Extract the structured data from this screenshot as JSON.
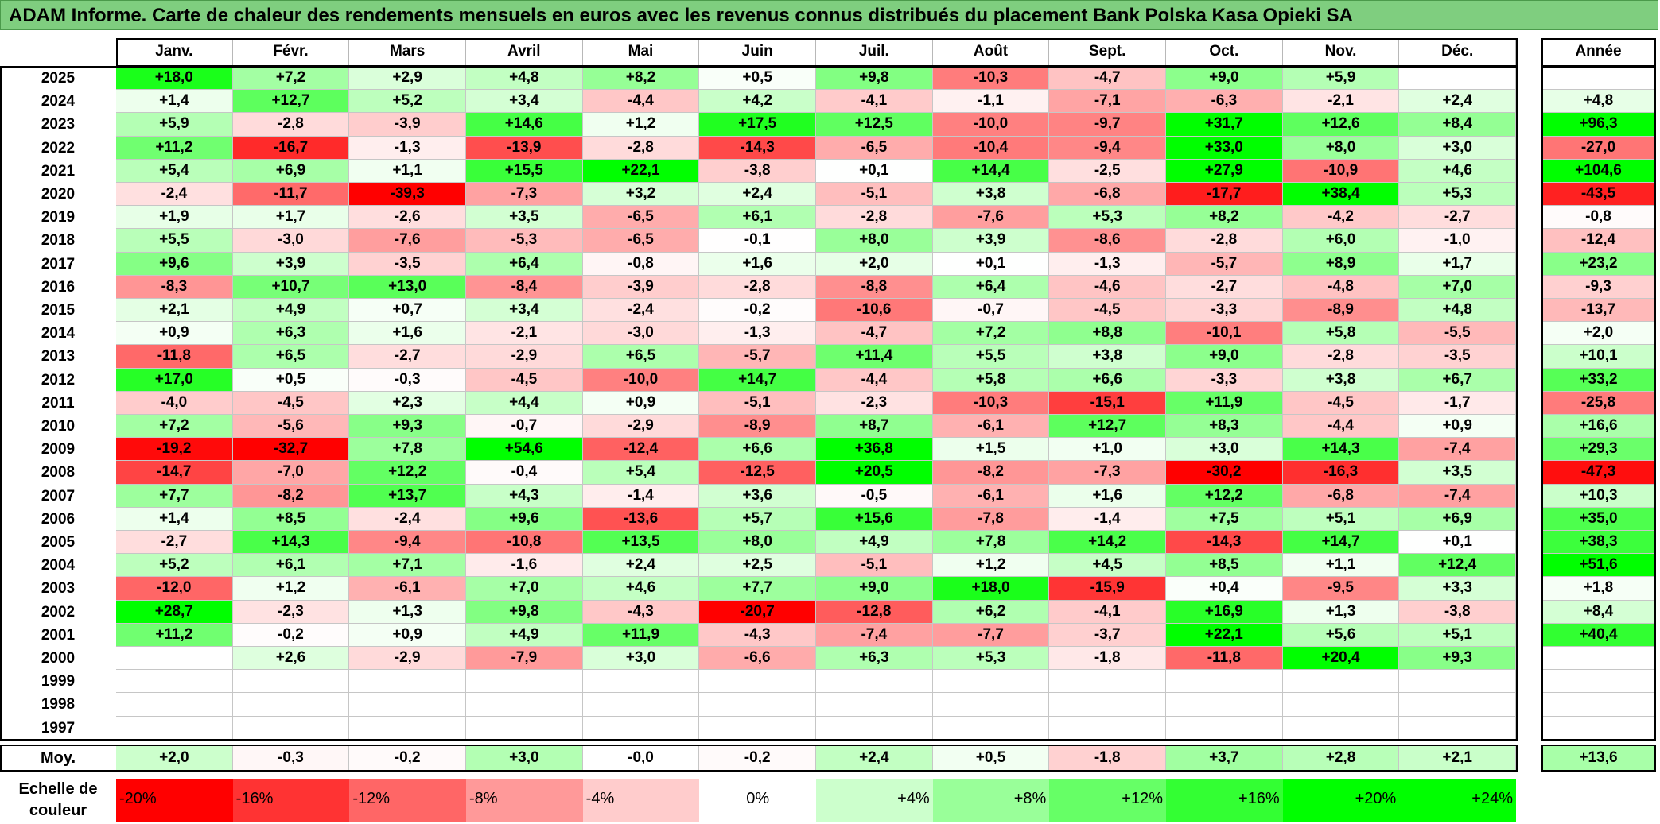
{
  "title": "ADAM Informe. Carte de chaleur des rendements mensuels en euros avec les revenus connus distribués du placement Bank Polska Kasa Opieki SA",
  "chart_data": {
    "type": "heatmap",
    "title": "ADAM Informe. Carte de chaleur des rendements mensuels en euros avec les revenus connus distribués du placement Bank Polska Kasa Opieki SA",
    "months": [
      "Janv.",
      "Févr.",
      "Mars",
      "Avril",
      "Mai",
      "Juin",
      "Juil.",
      "Août",
      "Sept.",
      "Oct.",
      "Nov.",
      "Déc."
    ],
    "year_header": "Année",
    "rows": [
      {
        "year": "2025",
        "values": [
          "+18,0",
          "+7,2",
          "+2,9",
          "+4,8",
          "+8,2",
          "+0,5",
          "+9,8",
          "-10,3",
          "-4,7",
          "+9,0",
          "+5,9",
          ""
        ],
        "annual": ""
      },
      {
        "year": "2024",
        "values": [
          "+1,4",
          "+12,7",
          "+5,2",
          "+3,4",
          "-4,4",
          "+4,2",
          "-4,1",
          "-1,1",
          "-7,1",
          "-6,3",
          "-2,1",
          "+2,4"
        ],
        "annual": "+4,8"
      },
      {
        "year": "2023",
        "values": [
          "+5,9",
          "-2,8",
          "-3,9",
          "+14,6",
          "+1,2",
          "+17,5",
          "+12,5",
          "-10,0",
          "-9,7",
          "+31,7",
          "+12,6",
          "+8,4"
        ],
        "annual": "+96,3"
      },
      {
        "year": "2022",
        "values": [
          "+11,2",
          "-16,7",
          "-1,3",
          "-13,9",
          "-2,8",
          "-14,3",
          "-6,5",
          "-10,4",
          "-9,4",
          "+33,0",
          "+8,0",
          "+3,0"
        ],
        "annual": "-27,0"
      },
      {
        "year": "2021",
        "values": [
          "+5,4",
          "+6,9",
          "+1,1",
          "+15,5",
          "+22,1",
          "-3,8",
          "+0,1",
          "+14,4",
          "-2,5",
          "+27,9",
          "-10,9",
          "+4,6"
        ],
        "annual": "+104,6"
      },
      {
        "year": "2020",
        "values": [
          "-2,4",
          "-11,7",
          "-39,3",
          "-7,3",
          "+3,2",
          "+2,4",
          "-5,1",
          "+3,8",
          "-6,8",
          "-17,7",
          "+38,4",
          "+5,3"
        ],
        "annual": "-43,5"
      },
      {
        "year": "2019",
        "values": [
          "+1,9",
          "+1,7",
          "-2,6",
          "+3,5",
          "-6,5",
          "+6,1",
          "-2,8",
          "-7,6",
          "+5,3",
          "+8,2",
          "-4,2",
          "-2,7"
        ],
        "annual": "-0,8"
      },
      {
        "year": "2018",
        "values": [
          "+5,5",
          "-3,0",
          "-7,6",
          "-5,3",
          "-6,5",
          "-0,1",
          "+8,0",
          "+3,9",
          "-8,6",
          "-2,8",
          "+6,0",
          "-1,0"
        ],
        "annual": "-12,4"
      },
      {
        "year": "2017",
        "values": [
          "+9,6",
          "+3,9",
          "-3,5",
          "+6,4",
          "-0,8",
          "+1,6",
          "+2,0",
          "+0,1",
          "-1,3",
          "-5,7",
          "+8,9",
          "+1,7"
        ],
        "annual": "+23,2"
      },
      {
        "year": "2016",
        "values": [
          "-8,3",
          "+10,7",
          "+13,0",
          "-8,4",
          "-3,9",
          "-2,8",
          "-8,8",
          "+6,4",
          "-4,6",
          "-2,7",
          "-4,8",
          "+7,0"
        ],
        "annual": "-9,3"
      },
      {
        "year": "2015",
        "values": [
          "+2,1",
          "+4,9",
          "+0,7",
          "+3,4",
          "-2,4",
          "-0,2",
          "-10,6",
          "-0,7",
          "-4,5",
          "-3,3",
          "-8,9",
          "+4,8"
        ],
        "annual": "-13,7"
      },
      {
        "year": "2014",
        "values": [
          "+0,9",
          "+6,3",
          "+1,6",
          "-2,1",
          "-3,0",
          "-1,3",
          "-4,7",
          "+7,2",
          "+8,8",
          "-10,1",
          "+5,8",
          "-5,5"
        ],
        "annual": "+2,0"
      },
      {
        "year": "2013",
        "values": [
          "-11,8",
          "+6,5",
          "-2,7",
          "-2,9",
          "+6,5",
          "-5,7",
          "+11,4",
          "+5,5",
          "+3,8",
          "+9,0",
          "-2,8",
          "-3,5"
        ],
        "annual": "+10,1"
      },
      {
        "year": "2012",
        "values": [
          "+17,0",
          "+0,5",
          "-0,3",
          "-4,5",
          "-10,0",
          "+14,7",
          "-4,4",
          "+5,8",
          "+6,6",
          "-3,3",
          "+3,8",
          "+6,7"
        ],
        "annual": "+33,2"
      },
      {
        "year": "2011",
        "values": [
          "-4,0",
          "-4,5",
          "+2,3",
          "+4,4",
          "+0,9",
          "-5,1",
          "-2,3",
          "-10,3",
          "-15,1",
          "+11,9",
          "-4,5",
          "-1,7"
        ],
        "annual": "-25,8"
      },
      {
        "year": "2010",
        "values": [
          "+7,2",
          "-5,6",
          "+9,3",
          "-0,7",
          "-2,9",
          "-8,9",
          "+8,7",
          "-6,1",
          "+12,7",
          "+8,3",
          "-4,4",
          "+0,9"
        ],
        "annual": "+16,6"
      },
      {
        "year": "2009",
        "values": [
          "-19,2",
          "-32,7",
          "+7,8",
          "+54,6",
          "-12,4",
          "+6,6",
          "+36,8",
          "+1,5",
          "+1,0",
          "+3,0",
          "+14,3",
          "-7,4"
        ],
        "annual": "+29,3"
      },
      {
        "year": "2008",
        "values": [
          "-14,7",
          "-7,0",
          "+12,2",
          "-0,4",
          "+5,4",
          "-12,5",
          "+20,5",
          "-8,2",
          "-7,3",
          "-30,2",
          "-16,3",
          "+3,5"
        ],
        "annual": "-47,3"
      },
      {
        "year": "2007",
        "values": [
          "+7,7",
          "-8,2",
          "+13,7",
          "+4,3",
          "-1,4",
          "+3,6",
          "-0,5",
          "-6,1",
          "+1,6",
          "+12,2",
          "-6,8",
          "-7,4"
        ],
        "annual": "+10,3"
      },
      {
        "year": "2006",
        "values": [
          "+1,4",
          "+8,5",
          "-2,4",
          "+9,6",
          "-13,6",
          "+5,7",
          "+15,6",
          "-7,8",
          "-1,4",
          "+7,5",
          "+5,1",
          "+6,9"
        ],
        "annual": "+35,0"
      },
      {
        "year": "2005",
        "values": [
          "-2,7",
          "+14,3",
          "-9,4",
          "-10,8",
          "+13,5",
          "+8,0",
          "+4,9",
          "+7,8",
          "+14,2",
          "-14,3",
          "+14,7",
          "+0,1"
        ],
        "annual": "+38,3"
      },
      {
        "year": "2004",
        "values": [
          "+5,2",
          "+6,1",
          "+7,1",
          "-1,6",
          "+2,4",
          "+2,5",
          "-5,1",
          "+1,2",
          "+4,5",
          "+8,5",
          "+1,1",
          "+12,4"
        ],
        "annual": "+51,6"
      },
      {
        "year": "2003",
        "values": [
          "-12,0",
          "+1,2",
          "-6,1",
          "+7,0",
          "+4,6",
          "+7,7",
          "+9,0",
          "+18,0",
          "-15,9",
          "+0,4",
          "-9,5",
          "+3,3"
        ],
        "annual": "+1,8"
      },
      {
        "year": "2002",
        "values": [
          "+28,7",
          "-2,3",
          "+1,3",
          "+9,8",
          "-4,3",
          "-20,7",
          "-12,8",
          "+6,2",
          "-4,1",
          "+16,9",
          "+1,3",
          "-3,8"
        ],
        "annual": "+8,4"
      },
      {
        "year": "2001",
        "values": [
          "+11,2",
          "-0,2",
          "+0,9",
          "+4,9",
          "+11,9",
          "-4,3",
          "-7,4",
          "-7,7",
          "-3,7",
          "+22,1",
          "+5,6",
          "+5,1"
        ],
        "annual": "+40,4"
      },
      {
        "year": "2000",
        "values": [
          "",
          "+2,6",
          "-2,9",
          "-7,9",
          "+3,0",
          "-6,6",
          "+6,3",
          "+5,3",
          "-1,8",
          "-11,8",
          "+20,4",
          "+9,3"
        ],
        "annual": ""
      },
      {
        "year": "1999",
        "values": [
          "",
          "",
          "",
          "",
          "",
          "",
          "",
          "",
          "",
          "",
          "",
          ""
        ],
        "annual": ""
      },
      {
        "year": "1998",
        "values": [
          "",
          "",
          "",
          "",
          "",
          "",
          "",
          "",
          "",
          "",
          "",
          ""
        ],
        "annual": ""
      },
      {
        "year": "1997",
        "values": [
          "",
          "",
          "",
          "",
          "",
          "",
          "",
          "",
          "",
          "",
          "",
          ""
        ],
        "annual": ""
      }
    ],
    "average": {
      "label": "Moy.",
      "values": [
        "+2,0",
        "-0,3",
        "-0,2",
        "+3,0",
        "-0,0",
        "-0,2",
        "+2,4",
        "+0,5",
        "-1,8",
        "+3,7",
        "+2,8",
        "+2,1"
      ],
      "annual": "+13,6"
    },
    "color_scale": {
      "label": "Echelle de couleur",
      "steps": [
        {
          "label": "-20%",
          "value": -20
        },
        {
          "label": "-16%",
          "value": -16
        },
        {
          "label": "-12%",
          "value": -12
        },
        {
          "label": "-8%",
          "value": -8
        },
        {
          "label": "-4%",
          "value": -4
        },
        {
          "label": "0%",
          "value": 0
        },
        {
          "label": "+4%",
          "value": 4
        },
        {
          "label": "+8%",
          "value": 8
        },
        {
          "label": "+12%",
          "value": 12
        },
        {
          "label": "+16%",
          "value": 16
        },
        {
          "label": "+20%",
          "value": 20
        },
        {
          "label": "+24%",
          "value": 24
        }
      ]
    }
  }
}
